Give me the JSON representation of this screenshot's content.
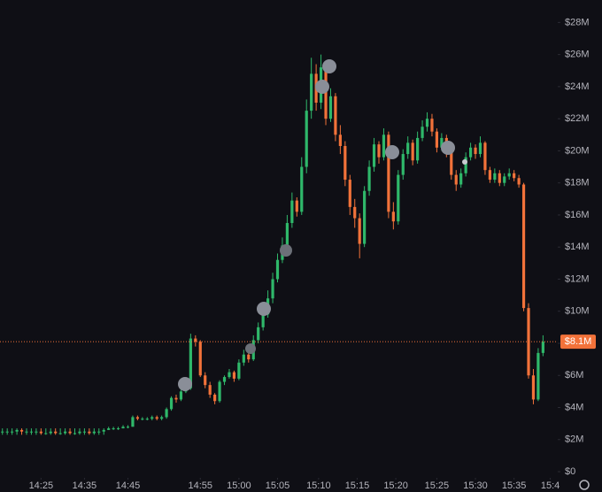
{
  "chart_data": {
    "type": "candlestick",
    "open": [
      2.5,
      2.5,
      2.5,
      2.5,
      2.6,
      2.5,
      2.5,
      2.5,
      2.5,
      2.4,
      2.4,
      2.5,
      2.4,
      2.4,
      2.5,
      2.4,
      2.4,
      2.5,
      2.5,
      2.4,
      2.5,
      2.5,
      2.6,
      2.7,
      2.7,
      2.7,
      2.8,
      2.8,
      3.4,
      3.3,
      3.3,
      3.3,
      3.4,
      3.3,
      3.4,
      3.9,
      4.6,
      4.5,
      5.0,
      5.2,
      8.3,
      8.1,
      6.0,
      5.4,
      4.8,
      4.4,
      5.6,
      5.9,
      6.2,
      5.8,
      6.8,
      7.3,
      7.0,
      8.2,
      9.0,
      9.8,
      10.8,
      12.0,
      13.2,
      14.1,
      15.5,
      16.9,
      16.2,
      19.0,
      22.5,
      24.8,
      23.0,
      25.2,
      22.0,
      23.4,
      21.0,
      20.3,
      18.2,
      16.5,
      15.8,
      14.2,
      17.5,
      19.0,
      20.4,
      19.6,
      21.0,
      16.2,
      15.6,
      18.5,
      19.8,
      20.5,
      19.4,
      20.8,
      21.5,
      22.0,
      21.2,
      20.2,
      20.8,
      19.9,
      18.5,
      17.9,
      18.6,
      19.6,
      20.2,
      19.8,
      20.5,
      18.8,
      18.2,
      18.6,
      18.0,
      18.4,
      18.6,
      18.3,
      17.9,
      10.2,
      6.0,
      4.5,
      7.4
    ],
    "high": [
      2.7,
      2.7,
      2.7,
      2.7,
      2.7,
      2.7,
      2.7,
      2.7,
      2.7,
      2.7,
      2.7,
      2.7,
      2.7,
      2.7,
      2.7,
      2.7,
      2.7,
      2.7,
      2.7,
      2.7,
      2.7,
      2.7,
      2.8,
      2.8,
      2.8,
      2.9,
      2.9,
      3.5,
      3.5,
      3.4,
      3.4,
      3.5,
      3.5,
      3.5,
      4.0,
      4.7,
      4.8,
      5.1,
      5.4,
      8.6,
      8.5,
      8.2,
      6.2,
      5.6,
      4.9,
      5.7,
      6.0,
      6.4,
      6.3,
      7.0,
      7.6,
      7.4,
      8.5,
      9.3,
      10.1,
      11.3,
      12.4,
      13.6,
      14.6,
      16.0,
      17.4,
      17.1,
      19.6,
      23.2,
      25.8,
      25.4,
      26.0,
      25.5,
      23.9,
      23.6,
      21.6,
      20.6,
      18.5,
      17.0,
      16.1,
      17.8,
      19.4,
      20.8,
      20.6,
      21.4,
      21.2,
      16.8,
      18.8,
      20.1,
      20.9,
      20.7,
      21.2,
      21.9,
      22.4,
      22.3,
      21.4,
      21.1,
      21.0,
      20.1,
      18.8,
      18.9,
      19.9,
      20.5,
      20.4,
      20.9,
      20.6,
      19.0,
      18.9,
      18.8,
      18.6,
      18.9,
      18.8,
      18.5,
      18.0,
      10.5,
      6.4,
      7.7,
      8.5
    ],
    "low": [
      2.3,
      2.3,
      2.3,
      2.3,
      2.3,
      2.3,
      2.3,
      2.3,
      2.3,
      2.3,
      2.3,
      2.3,
      2.3,
      2.3,
      2.3,
      2.3,
      2.3,
      2.3,
      2.3,
      2.3,
      2.3,
      2.3,
      2.6,
      2.6,
      2.6,
      2.7,
      2.7,
      2.8,
      3.2,
      3.2,
      3.2,
      3.2,
      3.2,
      3.2,
      3.3,
      3.8,
      4.3,
      4.4,
      4.9,
      5.1,
      7.8,
      5.9,
      5.2,
      4.6,
      4.2,
      4.3,
      5.4,
      5.8,
      5.6,
      5.7,
      6.6,
      6.8,
      6.9,
      8.0,
      8.8,
      9.6,
      10.5,
      11.8,
      13.0,
      13.8,
      15.2,
      15.9,
      16.0,
      18.6,
      22.0,
      22.5,
      22.6,
      21.6,
      21.8,
      20.6,
      19.8,
      17.8,
      16.0,
      15.2,
      13.3,
      14.0,
      17.2,
      18.7,
      19.2,
      19.4,
      15.8,
      15.1,
      15.4,
      18.2,
      19.5,
      19.1,
      19.2,
      20.6,
      21.2,
      20.9,
      19.9,
      20.0,
      19.6,
      18.2,
      17.5,
      17.7,
      18.4,
      19.4,
      19.5,
      19.6,
      18.5,
      18.0,
      18.0,
      17.8,
      17.8,
      18.2,
      18.1,
      17.7,
      10.0,
      5.8,
      4.2,
      4.4,
      7.2
    ],
    "close": [
      2.5,
      2.5,
      2.5,
      2.6,
      2.5,
      2.5,
      2.5,
      2.5,
      2.4,
      2.4,
      2.5,
      2.4,
      2.4,
      2.5,
      2.4,
      2.4,
      2.5,
      2.5,
      2.4,
      2.5,
      2.5,
      2.6,
      2.7,
      2.7,
      2.7,
      2.8,
      2.8,
      3.4,
      3.3,
      3.3,
      3.3,
      3.4,
      3.3,
      3.4,
      3.9,
      4.6,
      4.5,
      5.0,
      5.2,
      8.3,
      8.1,
      6.0,
      5.4,
      4.8,
      4.4,
      5.6,
      5.9,
      6.2,
      5.8,
      6.8,
      7.3,
      7.0,
      8.2,
      9.0,
      9.8,
      10.8,
      12.0,
      13.2,
      14.1,
      15.5,
      16.9,
      16.2,
      19.0,
      22.5,
      24.8,
      23.0,
      25.2,
      22.0,
      23.4,
      21.0,
      20.3,
      18.2,
      16.5,
      15.8,
      14.2,
      17.5,
      19.0,
      20.4,
      19.6,
      21.0,
      16.2,
      15.6,
      18.5,
      19.8,
      20.5,
      19.4,
      20.8,
      21.5,
      22.0,
      21.2,
      20.2,
      20.8,
      19.9,
      18.5,
      17.9,
      18.6,
      19.6,
      20.2,
      19.8,
      20.5,
      18.8,
      18.2,
      18.6,
      18.0,
      18.4,
      18.6,
      18.3,
      17.9,
      10.2,
      6.0,
      4.5,
      7.4,
      8.1
    ],
    "up_color": "#2fb86a",
    "down_color": "#f2723a",
    "xlim": [
      0,
      115
    ],
    "xticks": [
      {
        "value": 8.5,
        "label": "14:25"
      },
      {
        "value": 17.5,
        "label": "14:35"
      },
      {
        "value": 26.5,
        "label": "14:45"
      },
      {
        "value": 41.5,
        "label": "14:55"
      },
      {
        "value": 49.5,
        "label": "15:00"
      },
      {
        "value": 57.5,
        "label": "15:05"
      },
      {
        "value": 66,
        "label": "15:10"
      },
      {
        "value": 74,
        "label": "15:15"
      },
      {
        "value": 82,
        "label": "15:20"
      },
      {
        "value": 90.5,
        "label": "15:25"
      },
      {
        "value": 98.5,
        "label": "15:30"
      },
      {
        "value": 106.5,
        "label": "15:35"
      },
      {
        "value": 114,
        "label": "15:4"
      }
    ],
    "ylim": [
      -0.66,
      29.4
    ],
    "yticks": [
      {
        "value": 0,
        "label": "$0"
      },
      {
        "value": 2,
        "label": "$2M"
      },
      {
        "value": 4,
        "label": "$4M"
      },
      {
        "value": 6,
        "label": "$6M"
      },
      {
        "value": 8,
        "label": "$8M"
      },
      {
        "value": 10,
        "label": "$10M"
      },
      {
        "value": 12,
        "label": "$12M"
      },
      {
        "value": 14,
        "label": "$14M"
      },
      {
        "value": 16,
        "label": "$16M"
      },
      {
        "value": 18,
        "label": "$18M"
      },
      {
        "value": 20,
        "label": "$20M"
      },
      {
        "value": 22,
        "label": "$22M"
      },
      {
        "value": 24,
        "label": "$24M"
      },
      {
        "value": 26,
        "label": "$26M"
      },
      {
        "value": 28,
        "label": "$28M"
      }
    ],
    "last_price": 8.1,
    "last_price_label": "$8.1M",
    "last_price_color": "#f2723a"
  }
}
